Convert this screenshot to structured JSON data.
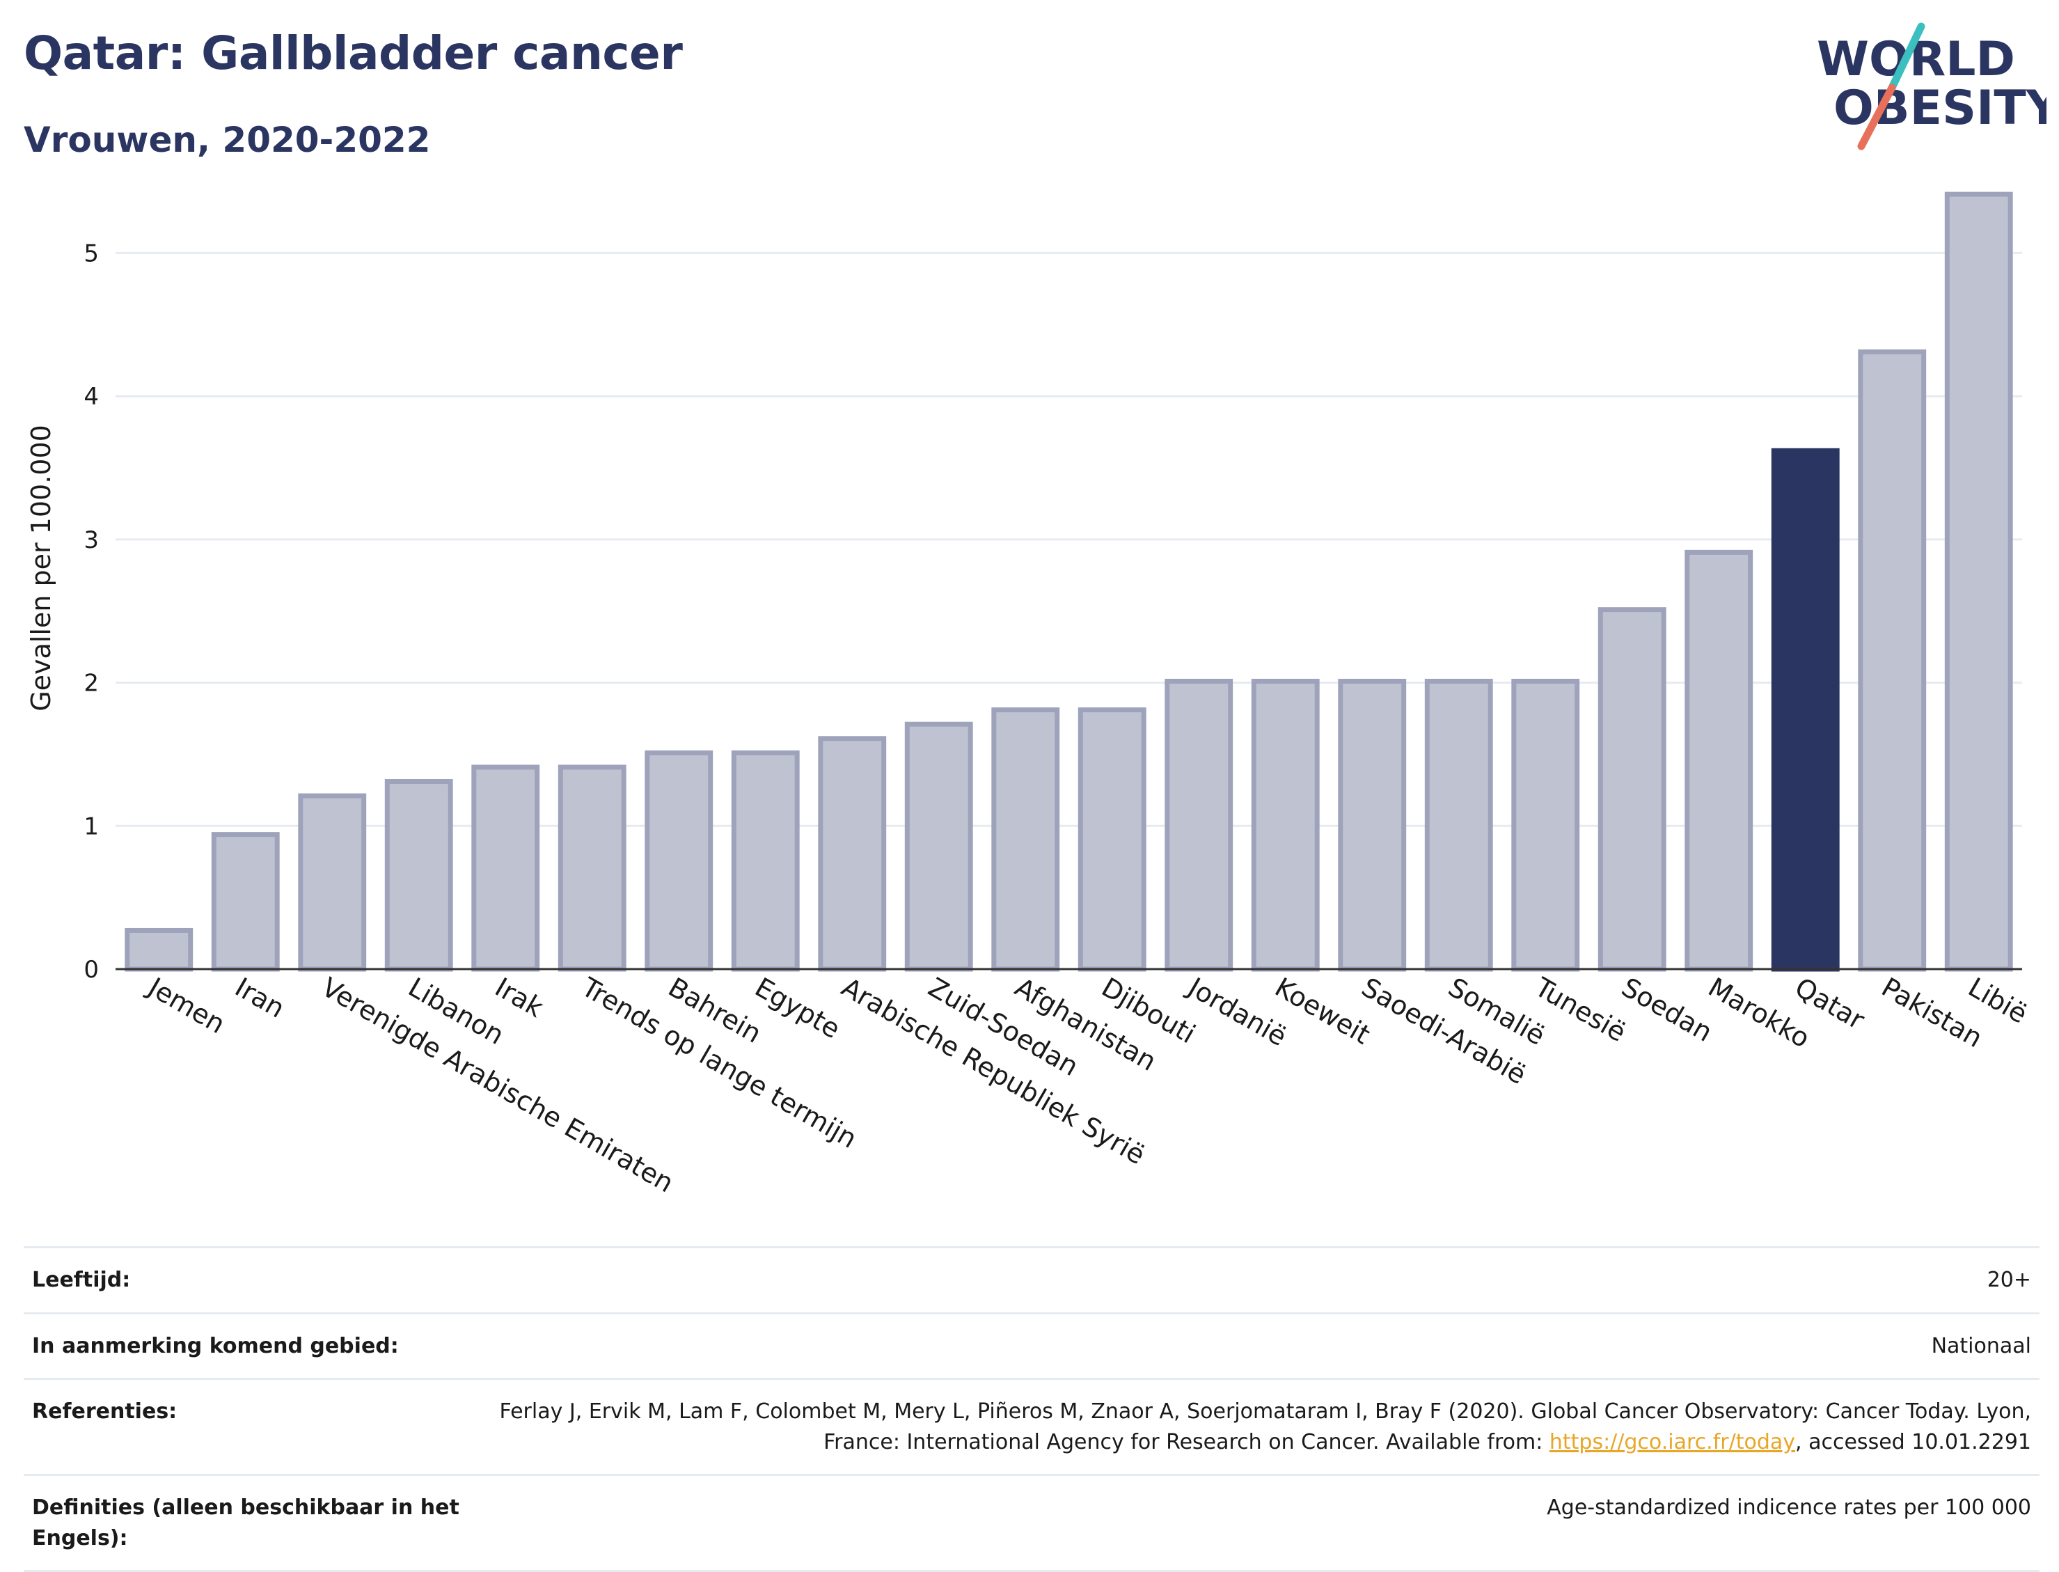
{
  "header": {
    "title": "Qatar: Gallbladder cancer",
    "subtitle": "Vrouwen, 2020-2022"
  },
  "logo": {
    "line1": "WORLD",
    "line2": "OBESITY",
    "accent_teal": "#3bbfbf",
    "accent_red": "#e8705a",
    "text_color": "#2b3561"
  },
  "colors": {
    "bar_default": "#bfc3d1",
    "bar_stroke": "#9ea3bb",
    "bar_highlight": "#2b3561",
    "grid": "#e6ebf1",
    "axis": "#333333"
  },
  "chart_data": {
    "type": "bar",
    "title": "Qatar: Gallbladder cancer",
    "subtitle": "Vrouwen, 2020-2022",
    "xlabel": "",
    "ylabel": "Gevallen per 100.000",
    "ylim": [
      0,
      5.6
    ],
    "yticks": [
      0,
      1,
      2,
      3,
      4,
      5
    ],
    "grid": true,
    "highlight": "Qatar",
    "categories": [
      "Jemen",
      "Iran",
      "Verenigde Arabische Emiraten",
      "Libanon",
      "Irak",
      "Trends op lange termijn",
      "Bahrein",
      "Egypte",
      "Arabische Republiek Syrië",
      "Zuid-Soedan",
      "Afghanistan",
      "Djibouti",
      "Jordanië",
      "Koeweit",
      "Saoedi-Arabië",
      "Somalië",
      "Tunesië",
      "Soedan",
      "Marokko",
      "Qatar",
      "Pakistan",
      "Libië"
    ],
    "values": [
      0.27,
      0.94,
      1.21,
      1.31,
      1.41,
      1.41,
      1.51,
      1.51,
      1.61,
      1.71,
      1.81,
      1.81,
      2.01,
      2.01,
      2.01,
      2.01,
      2.01,
      2.51,
      2.91,
      3.62,
      4.31,
      5.41
    ]
  },
  "table": {
    "rows": [
      {
        "key": "Leeftijd:",
        "value": "20+"
      },
      {
        "key": "In aanmerking komend gebied:",
        "value": "Nationaal"
      },
      {
        "key": "Referenties:",
        "value_before": "Ferlay J, Ervik M, Lam F, Colombet M, Mery L, Piñeros M, Znaor A, Soerjomataram I, Bray F (2020). Global Cancer Observatory: Cancer Today. Lyon, France: International Agency for Research on Cancer. Available from: ",
        "link": "https://gco.iarc.fr/today",
        "value_after": ", accessed 10.01.2291"
      },
      {
        "key": "Definities (alleen beschikbaar in het Engels):",
        "value": "Age-standardized indicence rates per 100 000"
      }
    ]
  }
}
